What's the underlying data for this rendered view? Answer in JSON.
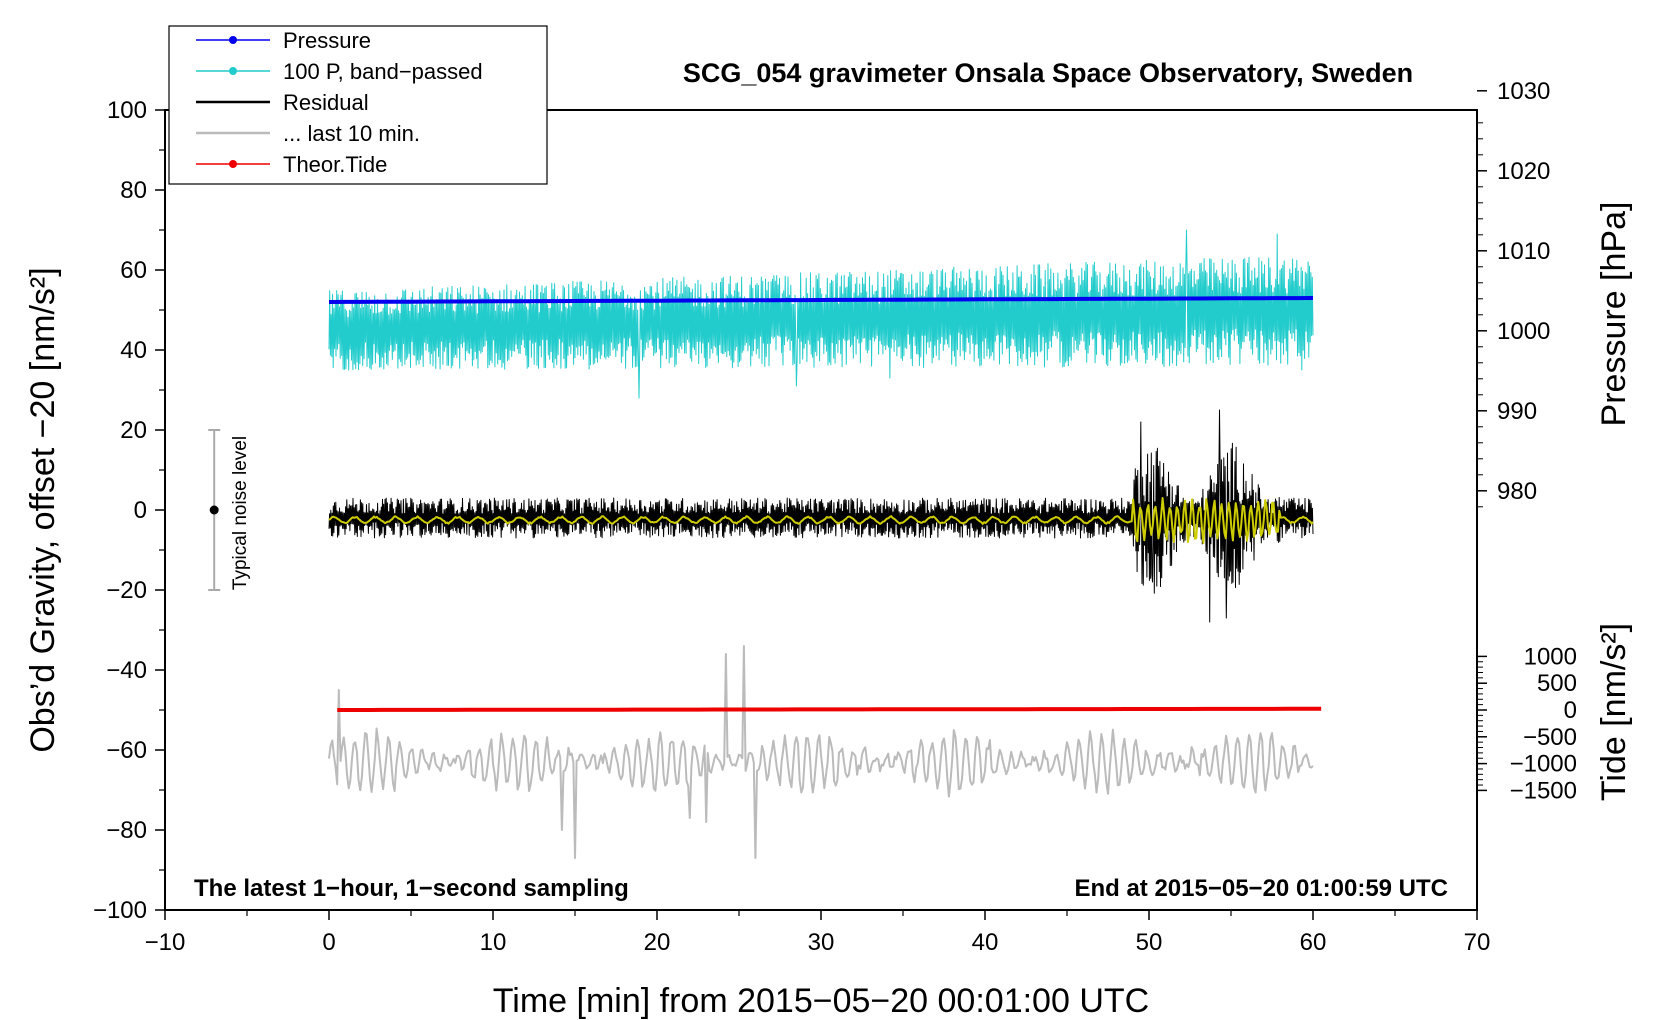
{
  "chart_data": {
    "type": "line",
    "title": "SCG_054 gravimeter Onsala Space Observatory, Sweden",
    "xlabel": "Time [min] from 2015−05−20 00:01:00 UTC",
    "ylabel": "Obs’d Gravity, offset −20 [nm/s²]",
    "ylabel_pressure": "Pressure [hPa]",
    "ylabel_tide": "Tide [nm/s²]",
    "note_left": "The latest 1−hour, 1−second sampling",
    "note_right": "End at 2015−05−20 01:00:59 UTC",
    "noise_label": "Typical noise level",
    "xlim": [
      -10,
      70
    ],
    "ylim": [
      -100,
      100
    ],
    "x_ticks": [
      -10,
      0,
      10,
      20,
      30,
      40,
      50,
      60,
      70
    ],
    "x_tick_labels": [
      "−10",
      "0",
      "10",
      "20",
      "30",
      "40",
      "50",
      "60",
      "70"
    ],
    "y_ticks": [
      -100,
      -80,
      -60,
      -40,
      -20,
      0,
      20,
      40,
      60,
      80,
      100
    ],
    "y_tick_labels": [
      "−100",
      "−80",
      "−60",
      "−40",
      "−20",
      "0",
      "20",
      "40",
      "60",
      "80",
      "100"
    ],
    "pressure_axis": {
      "ticks": [
        980,
        990,
        1000,
        1010,
        1020,
        1030
      ],
      "tick_labels": [
        "980",
        "990",
        "1000",
        "1010",
        "1020",
        "1030"
      ],
      "ref_hpa": 1003.6,
      "ref_y": 52,
      "y_per_hpa": 2
    },
    "tide_axis": {
      "ticks": [
        -1500,
        -1000,
        -500,
        0,
        500,
        1000
      ],
      "tick_labels": [
        "−1500",
        "−1000",
        "−500",
        "0",
        "500",
        "1000"
      ],
      "ref_y": -50,
      "y_per_unit": 0.0134
    },
    "noise_bar": {
      "x": -7,
      "center": 0,
      "low": -20,
      "high": 20
    },
    "legend": [
      {
        "label": "Pressure",
        "color": "#0000ee",
        "marker": true
      },
      {
        "label": "100 P, band−passed",
        "color": "#22cccc",
        "marker": true
      },
      {
        "label": "Residual",
        "color": "#000000",
        "marker": false
      },
      {
        "label": "... last 10 min.",
        "color": "#bbbbbb",
        "marker": false
      },
      {
        "label": "Theor.Tide",
        "color": "#ee0000",
        "marker": true
      }
    ],
    "series": [
      {
        "name": "Pressure",
        "color": "#0000ee",
        "x_range": [
          0,
          60
        ],
        "y_start": 52,
        "y_end": 53,
        "width": 4
      },
      {
        "name": "100 P, band−passed",
        "color": "#22cccc",
        "x_range": [
          0,
          60
        ],
        "baseline_start": 45,
        "baseline_end": 50,
        "amp_start": 10,
        "amp_end": 14,
        "peaks": [
          [
            1.2,
            35
          ],
          [
            18.9,
            28
          ],
          [
            28.5,
            31
          ],
          [
            34.2,
            33
          ],
          [
            59.3,
            35
          ],
          [
            52.3,
            70
          ],
          [
            57.8,
            69
          ]
        ],
        "width": 1
      },
      {
        "name": "Residual",
        "color": "#000000",
        "x_range": [
          0,
          60
        ],
        "baseline": -2,
        "amp": 5,
        "burst_range": [
          49,
          58
        ],
        "burst_amp": 14,
        "peaks": [
          [
            49.5,
            22
          ],
          [
            54.3,
            25
          ],
          [
            53.7,
            -28
          ],
          [
            54.7,
            -27
          ],
          [
            50.2,
            -18
          ]
        ],
        "width": 1
      },
      {
        "name": "Residual smoothed",
        "color": "#cccc00",
        "x_range": [
          0,
          60
        ],
        "baseline": -2.5,
        "amp": 1,
        "burst_range": [
          49,
          58
        ],
        "burst_amp": 6,
        "width": 2
      },
      {
        "name": "... last 10 min.",
        "color": "#bbbbbb",
        "x_range": [
          0,
          60
        ],
        "baseline": -63,
        "amp": 7,
        "peaks": [
          [
            0.6,
            -45
          ],
          [
            15,
            -87
          ],
          [
            25.3,
            -34
          ],
          [
            24.2,
            -36
          ],
          [
            26,
            -87
          ],
          [
            22,
            -77
          ],
          [
            23,
            -78
          ],
          [
            14.2,
            -80
          ]
        ],
        "width": 2
      },
      {
        "name": "Theor.Tide",
        "color": "#ee0000",
        "x_range": [
          0.5,
          60.5
        ],
        "y_start": -50,
        "y_end": -49.7,
        "width": 4
      }
    ]
  }
}
